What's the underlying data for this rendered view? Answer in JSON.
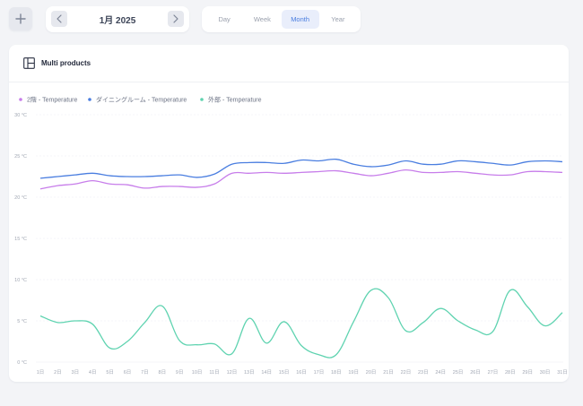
{
  "toolbar": {
    "add_label": "+",
    "date_label": "1月 2025",
    "tabs": [
      {
        "label": "Day"
      },
      {
        "label": "Week"
      },
      {
        "label": "Month",
        "active": true
      },
      {
        "label": "Year"
      }
    ]
  },
  "card": {
    "title": "Multi products",
    "icon": "panel-layout-icon"
  },
  "colors": {
    "background": "#f3f4f7",
    "card": "#ffffff",
    "accent": "#4a7ee0"
  },
  "chart_data": {
    "type": "line",
    "title": "",
    "xlabel": "",
    "ylabel": "",
    "ylim": [
      0,
      30
    ],
    "y_ticks": [
      "0 °C",
      "5 °C",
      "10 °C",
      "15 °C",
      "20 °C",
      "25 °C",
      "30 °C"
    ],
    "y_tick_values": [
      0,
      5,
      10,
      15,
      20,
      25,
      30
    ],
    "grid": true,
    "legend_position": "top-left",
    "categories": [
      "1日",
      "2日",
      "3日",
      "4日",
      "5日",
      "6日",
      "7日",
      "8日",
      "9日",
      "10日",
      "11日",
      "12日",
      "13日",
      "14日",
      "15日",
      "16日",
      "17日",
      "18日",
      "19日",
      "20日",
      "21日",
      "22日",
      "23日",
      "24日",
      "25日",
      "26日",
      "27日",
      "28日",
      "29日",
      "30日",
      "31日"
    ],
    "series": [
      {
        "name": "2階 - Temperature",
        "color": "#c77dea",
        "values": [
          21.0,
          21.4,
          21.6,
          22.0,
          21.6,
          21.5,
          21.1,
          21.3,
          21.3,
          21.2,
          21.6,
          22.9,
          22.9,
          23.0,
          22.9,
          23.0,
          23.1,
          23.2,
          22.9,
          22.6,
          22.9,
          23.3,
          23.0,
          23.0,
          23.1,
          22.9,
          22.7,
          22.7,
          23.1,
          23.1,
          23.0
        ]
      },
      {
        "name": "ダイニングルーム - Temperature",
        "color": "#4a7ee0",
        "values": [
          22.3,
          22.5,
          22.7,
          22.9,
          22.6,
          22.5,
          22.5,
          22.6,
          22.7,
          22.4,
          22.8,
          24.0,
          24.2,
          24.2,
          24.1,
          24.5,
          24.4,
          24.6,
          24.0,
          23.7,
          23.9,
          24.4,
          24.0,
          24.0,
          24.4,
          24.3,
          24.1,
          23.9,
          24.3,
          24.4,
          24.3
        ]
      },
      {
        "name": "外部 - Temperature",
        "color": "#5fd3b0",
        "values": [
          5.6,
          4.8,
          5.0,
          4.6,
          1.7,
          2.5,
          4.8,
          6.8,
          2.6,
          2.1,
          2.2,
          1.0,
          5.3,
          2.3,
          4.9,
          2.0,
          0.9,
          0.9,
          4.9,
          8.7,
          7.8,
          3.8,
          4.8,
          6.5,
          5.0,
          3.9,
          3.7,
          8.7,
          6.7,
          4.4,
          6.0
        ]
      }
    ]
  }
}
